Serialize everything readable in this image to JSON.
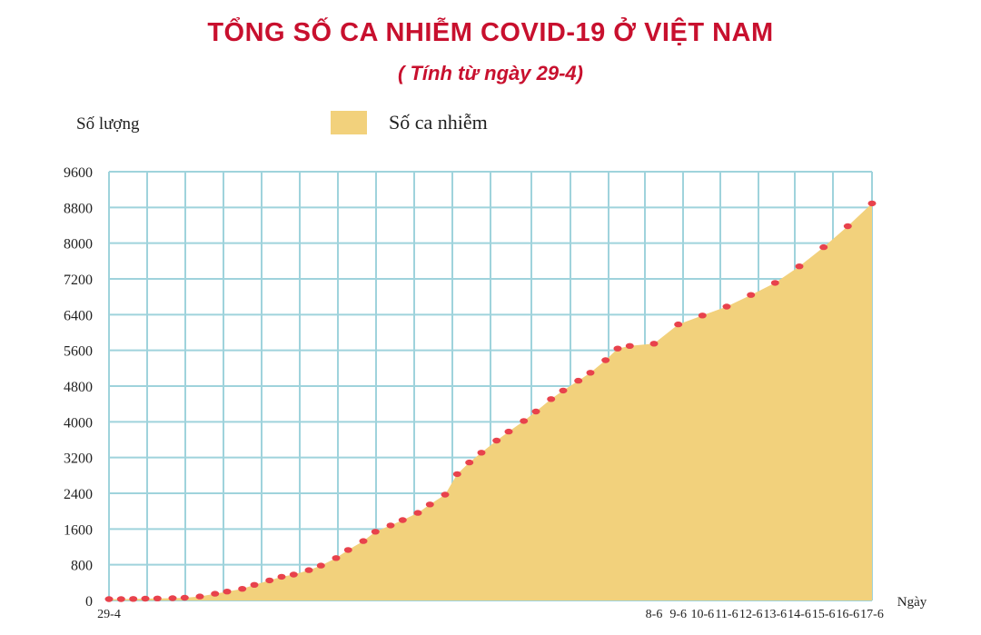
{
  "chart_data": {
    "type": "area",
    "title": "TỔNG SỐ CA NHIỄM COVID-19 Ở VIỆT NAM",
    "subtitle": "( Tính từ ngày 29-4)",
    "ylabel": "Số lượng",
    "xlabel": "Ngày",
    "ylim": [
      0,
      9600
    ],
    "yticks": [
      "9600",
      "8800",
      "8000",
      "7200",
      "6400",
      "5600",
      "4800",
      "4000",
      "3200",
      "2400",
      "1600",
      "800",
      "0"
    ],
    "legend": {
      "position": "top",
      "entries": [
        "Số ca nhiễm"
      ]
    },
    "grid": true,
    "colors": {
      "fill": "#f2d17c",
      "grid": "#9fd3dc",
      "marker": "#e8424c",
      "title": "#c8102e"
    },
    "x_labels": [
      {
        "i": 0,
        "label": "29-4"
      },
      {
        "i": 40,
        "label": "8-6"
      },
      {
        "i": 41,
        "label": "9-6"
      },
      {
        "i": 42,
        "label": "10-6"
      },
      {
        "i": 43,
        "label": "11-6"
      },
      {
        "i": 44,
        "label": "12-6"
      },
      {
        "i": 45,
        "label": "13-6"
      },
      {
        "i": 46,
        "label": "14-6"
      },
      {
        "i": 47,
        "label": "15-6"
      },
      {
        "i": 48,
        "label": "16-6"
      },
      {
        "i": 49,
        "label": "17-6"
      }
    ],
    "series": [
      {
        "name": "Số ca nhiễm",
        "points": [
          [
            0,
            30
          ],
          [
            1,
            30
          ],
          [
            2,
            35
          ],
          [
            3,
            40
          ],
          [
            4,
            45
          ],
          [
            5,
            50
          ],
          [
            6,
            60
          ],
          [
            7,
            90
          ],
          [
            8,
            150
          ],
          [
            9,
            200
          ],
          [
            10,
            260
          ],
          [
            11,
            350
          ],
          [
            12,
            450
          ],
          [
            13,
            530
          ],
          [
            14,
            580
          ],
          [
            15,
            680
          ],
          [
            16,
            780
          ],
          [
            17,
            950
          ],
          [
            18,
            1130
          ],
          [
            19,
            1330
          ],
          [
            20,
            1540
          ],
          [
            21,
            1680
          ],
          [
            22,
            1800
          ],
          [
            23,
            1960
          ],
          [
            24,
            2150
          ],
          [
            25,
            2370
          ],
          [
            26,
            2830
          ],
          [
            27,
            3090
          ],
          [
            28,
            3310
          ],
          [
            29,
            3580
          ],
          [
            30,
            3780
          ],
          [
            31,
            4020
          ],
          [
            32,
            4230
          ],
          [
            33,
            4510
          ],
          [
            34,
            4700
          ],
          [
            35,
            4920
          ],
          [
            36,
            5100
          ],
          [
            37,
            5380
          ],
          [
            38,
            5640
          ],
          [
            39,
            5700
          ],
          [
            40,
            5750
          ],
          [
            41,
            6180
          ],
          [
            42,
            6380
          ],
          [
            43,
            6580
          ],
          [
            44,
            6840
          ],
          [
            45,
            7110
          ],
          [
            46,
            7480
          ],
          [
            47,
            7910
          ],
          [
            48,
            8380
          ],
          [
            49,
            8890
          ]
        ],
        "x_positions": [
          0,
          0.4,
          0.8,
          1.2,
          1.6,
          2.1,
          2.5,
          3.0,
          3.5,
          3.9,
          4.4,
          4.8,
          5.3,
          5.7,
          6.1,
          6.6,
          7.0,
          7.5,
          7.9,
          8.4,
          8.8,
          9.3,
          9.7,
          10.2,
          10.6,
          11.1,
          11.5,
          11.9,
          12.3,
          12.8,
          13.2,
          13.7,
          14.1,
          14.6,
          15.0,
          15.5,
          15.9,
          16.4,
          16.8,
          17.2,
          18.0,
          18.8,
          19.6,
          20.4,
          21.2,
          22.0,
          22.8,
          23.6,
          24.4,
          25.2
        ]
      }
    ]
  }
}
